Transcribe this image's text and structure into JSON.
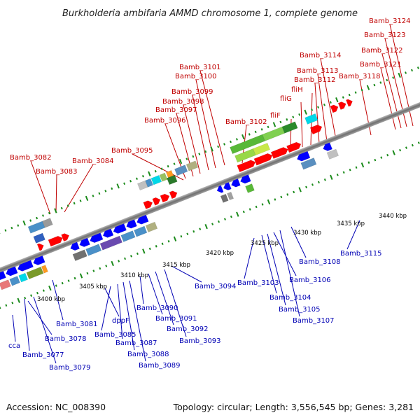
{
  "header": {
    "title": "Burkholderia ambifaria AMMD chromosome 1, complete genome"
  },
  "footer": {
    "accession": "Accession: NC_008390",
    "summary": "Topology: circular; Length: 3,556,545 bp; Genes: 3,281"
  },
  "scale_labels": [
    "3400 kbp",
    "3405 kbp",
    "3410 kbp",
    "3415 kbp",
    "3420 kbp",
    "3425 kbp",
    "3430 kbp",
    "3435 kbp",
    "3440 kbp"
  ],
  "top_labels": [
    "Bamb_3082",
    "Bamb_3083",
    "Bamb_3084",
    "Bamb_3095",
    "Bamb_3096",
    "Bamb_3097",
    "Bamb_3098",
    "Bamb_3099",
    "Bamb_3100",
    "Bamb_3101",
    "Bamb_3102",
    "fliF",
    "fliG",
    "fliH",
    "Bamb_3112",
    "Bamb_3113",
    "Bamb_3114",
    "Bamb_3118",
    "Bamb_3121",
    "Bamb_3122",
    "Bamb_3123",
    "Bamb_3124"
  ],
  "bottom_labels": [
    "Bamb_3081",
    "cca",
    "Bamb_3078",
    "Bamb_3077",
    "Bamb_3079",
    "dppF",
    "Bamb_3085",
    "Bamb_3087",
    "Bamb_3088",
    "Bamb_3089",
    "Bamb_3090",
    "Bamb_3091",
    "Bamb_3092",
    "Bamb_3093",
    "Bamb_3094",
    "Bamb_3103",
    "Bamb_3104",
    "Bamb_3105",
    "Bamb_3106",
    "Bamb_3107",
    "Bamb_3108",
    "Bamb_3115"
  ],
  "colors": {
    "top_label": "#c00000",
    "bottom_label": "#0000b4",
    "forward_strand": "#ff0000",
    "reverse_strand": "#0000ff",
    "backbone": "#8f8f8f",
    "tick": "#1a8a1a"
  }
}
